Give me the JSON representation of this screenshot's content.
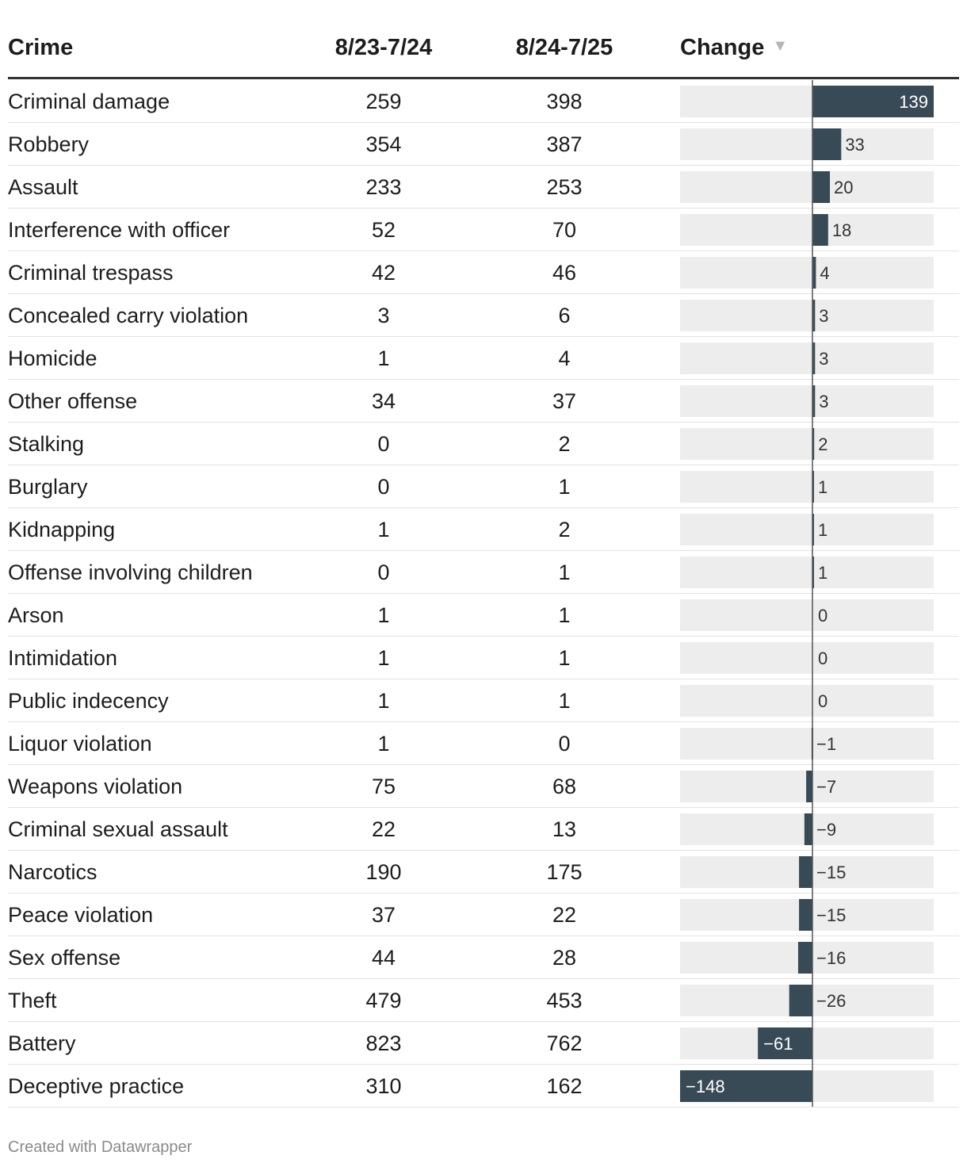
{
  "table": {
    "headers": {
      "crime": "Crime",
      "period1": "8/23-7/24",
      "period2": "8/24-7/25",
      "change": "Change",
      "sort_icon": "▼"
    }
  },
  "chart_data": {
    "type": "table",
    "title": "",
    "columns": [
      "Crime",
      "8/23-7/24",
      "8/24-7/25",
      "Change"
    ],
    "sorted_by": "Change",
    "sort_order": "descending",
    "bar_color": "#394a57",
    "bar_background": "#ededed",
    "change_axis_range": [
      -148,
      139
    ],
    "rows": [
      {
        "crime": "Criminal damage",
        "v1": 259,
        "v2": 398,
        "change": 139
      },
      {
        "crime": "Robbery",
        "v1": 354,
        "v2": 387,
        "change": 33
      },
      {
        "crime": "Assault",
        "v1": 233,
        "v2": 253,
        "change": 20
      },
      {
        "crime": "Interference with officer",
        "v1": 52,
        "v2": 70,
        "change": 18
      },
      {
        "crime": "Criminal trespass",
        "v1": 42,
        "v2": 46,
        "change": 4
      },
      {
        "crime": "Concealed carry violation",
        "v1": 3,
        "v2": 6,
        "change": 3
      },
      {
        "crime": "Homicide",
        "v1": 1,
        "v2": 4,
        "change": 3
      },
      {
        "crime": "Other offense",
        "v1": 34,
        "v2": 37,
        "change": 3
      },
      {
        "crime": "Stalking",
        "v1": 0,
        "v2": 2,
        "change": 2
      },
      {
        "crime": "Burglary",
        "v1": 0,
        "v2": 1,
        "change": 1
      },
      {
        "crime": "Kidnapping",
        "v1": 1,
        "v2": 2,
        "change": 1
      },
      {
        "crime": "Offense involving children",
        "v1": 0,
        "v2": 1,
        "change": 1
      },
      {
        "crime": "Arson",
        "v1": 1,
        "v2": 1,
        "change": 0
      },
      {
        "crime": "Intimidation",
        "v1": 1,
        "v2": 1,
        "change": 0
      },
      {
        "crime": "Public indecency",
        "v1": 1,
        "v2": 1,
        "change": 0
      },
      {
        "crime": "Liquor violation",
        "v1": 1,
        "v2": 0,
        "change": -1
      },
      {
        "crime": "Weapons violation",
        "v1": 75,
        "v2": 68,
        "change": -7
      },
      {
        "crime": "Criminal sexual assault",
        "v1": 22,
        "v2": 13,
        "change": -9
      },
      {
        "crime": "Narcotics",
        "v1": 190,
        "v2": 175,
        "change": -15
      },
      {
        "crime": "Peace violation",
        "v1": 37,
        "v2": 22,
        "change": -15
      },
      {
        "crime": "Sex offense",
        "v1": 44,
        "v2": 28,
        "change": -16
      },
      {
        "crime": "Theft",
        "v1": 479,
        "v2": 453,
        "change": -26
      },
      {
        "crime": "Battery",
        "v1": 823,
        "v2": 762,
        "change": -61
      },
      {
        "crime": "Deceptive practice",
        "v1": 310,
        "v2": 162,
        "change": -148
      }
    ]
  },
  "footer": {
    "credit": "Created with Datawrapper"
  }
}
